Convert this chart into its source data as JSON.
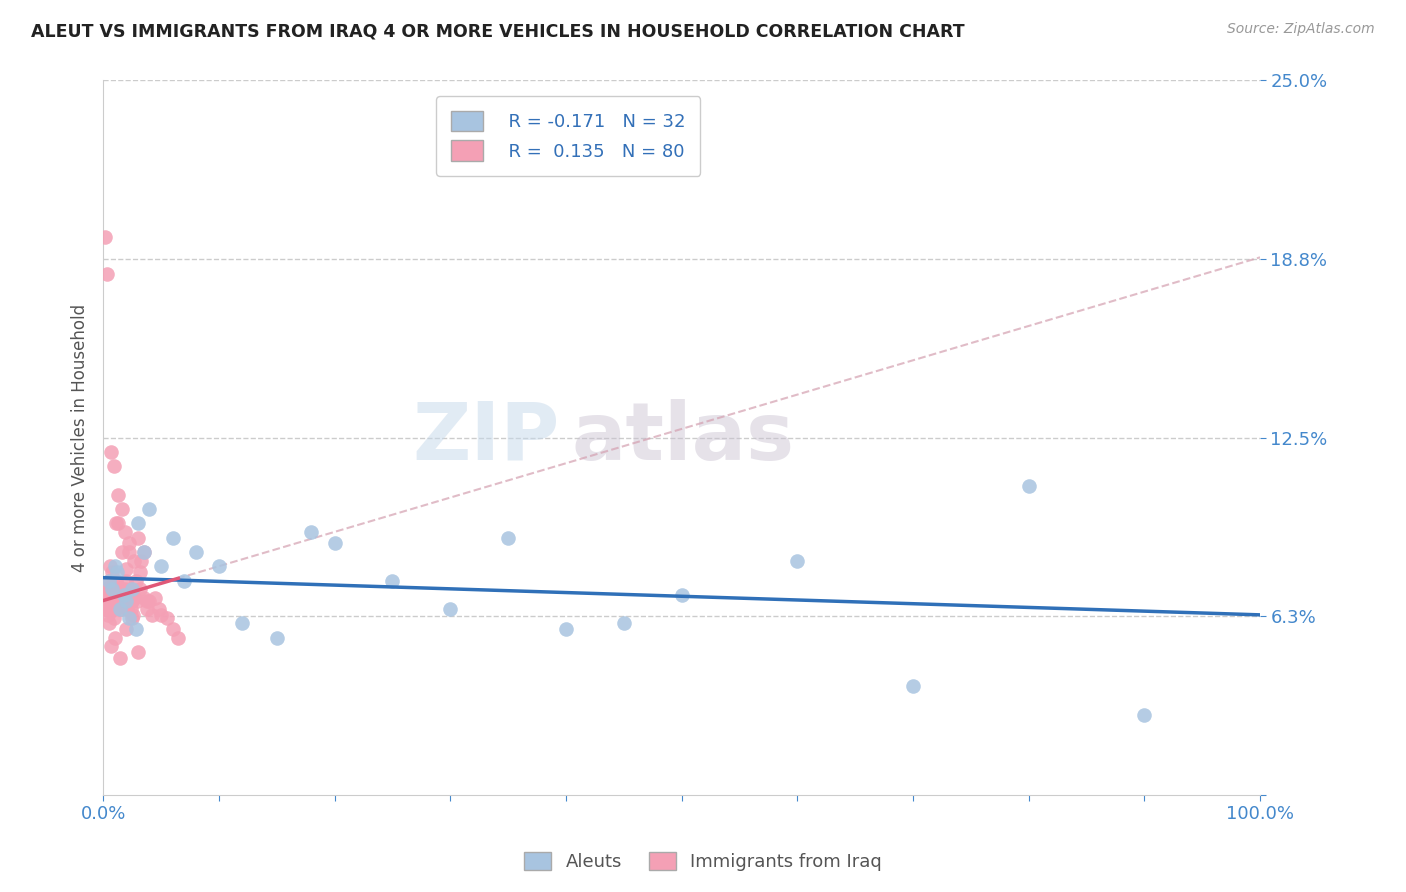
{
  "title": "ALEUT VS IMMIGRANTS FROM IRAQ 4 OR MORE VEHICLES IN HOUSEHOLD CORRELATION CHART",
  "source": "Source: ZipAtlas.com",
  "ylabel": "4 or more Vehicles in Household",
  "xlim": [
    0,
    1.0
  ],
  "ylim": [
    0,
    0.25
  ],
  "legend_aleut_R": "-0.171",
  "legend_aleut_N": "32",
  "legend_iraq_R": "0.135",
  "legend_iraq_N": "80",
  "aleut_color": "#a8c4e0",
  "iraq_color": "#f4a0b5",
  "aleut_line_color": "#3070b8",
  "iraq_line_color": "#e05878",
  "iraq_dashed_color": "#d4a0b0",
  "watermark_zip": "ZIP",
  "watermark_atlas": "atlas",
  "background_color": "#ffffff",
  "grid_color": "#cccccc",
  "aleut_x": [
    0.005,
    0.008,
    0.01,
    0.012,
    0.015,
    0.018,
    0.02,
    0.022,
    0.025,
    0.028,
    0.03,
    0.035,
    0.04,
    0.05,
    0.06,
    0.07,
    0.08,
    0.1,
    0.12,
    0.15,
    0.18,
    0.2,
    0.25,
    0.3,
    0.35,
    0.4,
    0.45,
    0.5,
    0.6,
    0.7,
    0.8,
    0.9
  ],
  "aleut_y": [
    0.075,
    0.072,
    0.08,
    0.078,
    0.065,
    0.07,
    0.068,
    0.062,
    0.072,
    0.058,
    0.095,
    0.085,
    0.1,
    0.08,
    0.09,
    0.075,
    0.085,
    0.08,
    0.06,
    0.055,
    0.092,
    0.088,
    0.075,
    0.065,
    0.09,
    0.058,
    0.06,
    0.07,
    0.082,
    0.038,
    0.108,
    0.028
  ],
  "iraq_x": [
    0.001,
    0.002,
    0.002,
    0.003,
    0.003,
    0.004,
    0.004,
    0.005,
    0.005,
    0.006,
    0.006,
    0.007,
    0.007,
    0.008,
    0.008,
    0.009,
    0.009,
    0.01,
    0.01,
    0.011,
    0.011,
    0.012,
    0.012,
    0.013,
    0.013,
    0.014,
    0.015,
    0.015,
    0.016,
    0.017,
    0.018,
    0.018,
    0.019,
    0.02,
    0.02,
    0.021,
    0.022,
    0.022,
    0.023,
    0.024,
    0.025,
    0.025,
    0.026,
    0.027,
    0.028,
    0.029,
    0.03,
    0.032,
    0.033,
    0.035,
    0.035,
    0.038,
    0.04,
    0.042,
    0.045,
    0.048,
    0.05,
    0.055,
    0.06,
    0.065,
    0.007,
    0.009,
    0.011,
    0.013,
    0.016,
    0.019,
    0.022,
    0.027,
    0.032,
    0.038,
    0.002,
    0.003,
    0.004,
    0.005,
    0.007,
    0.01,
    0.015,
    0.02,
    0.025,
    0.03
  ],
  "iraq_y": [
    0.068,
    0.065,
    0.072,
    0.07,
    0.066,
    0.063,
    0.071,
    0.069,
    0.075,
    0.08,
    0.068,
    0.065,
    0.073,
    0.078,
    0.07,
    0.062,
    0.068,
    0.065,
    0.072,
    0.075,
    0.069,
    0.071,
    0.068,
    0.095,
    0.073,
    0.07,
    0.068,
    0.072,
    0.085,
    0.065,
    0.068,
    0.069,
    0.072,
    0.075,
    0.079,
    0.065,
    0.069,
    0.085,
    0.072,
    0.065,
    0.068,
    0.071,
    0.063,
    0.069,
    0.075,
    0.068,
    0.09,
    0.072,
    0.082,
    0.069,
    0.085,
    0.065,
    0.068,
    0.063,
    0.069,
    0.065,
    0.063,
    0.062,
    0.058,
    0.055,
    0.12,
    0.115,
    0.095,
    0.105,
    0.1,
    0.092,
    0.088,
    0.082,
    0.078,
    0.068,
    0.195,
    0.182,
    0.065,
    0.06,
    0.052,
    0.055,
    0.048,
    0.058,
    0.062,
    0.05
  ]
}
